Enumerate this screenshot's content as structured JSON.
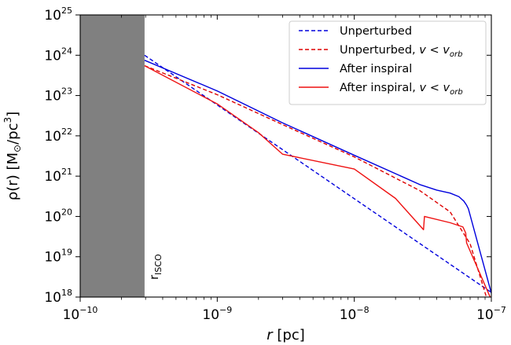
{
  "chart_data": {
    "type": "line",
    "xscale": "log",
    "yscale": "log",
    "xlim": [
      1e-10,
      1e-07
    ],
    "ylim": [
      1e+18,
      1e+25
    ],
    "xlabel": {
      "var": "r",
      "rest": " [pc]"
    },
    "ylabel": {
      "main": "ρ(r) [M",
      "sub": "⊙",
      "mid": "/pc",
      "sup": "3",
      "end": "]"
    },
    "xticks": [
      {
        "value": 1e-10,
        "base": "10",
        "exp": "−10"
      },
      {
        "value": 1e-09,
        "base": "10",
        "exp": "−9"
      },
      {
        "value": 1e-08,
        "base": "10",
        "exp": "−8"
      },
      {
        "value": 1e-07,
        "base": "10",
        "exp": "−7"
      }
    ],
    "yticks": [
      {
        "value": 1e+18,
        "base": "10",
        "exp": "18"
      },
      {
        "value": 1e+19,
        "base": "10",
        "exp": "19"
      },
      {
        "value": 1e+20,
        "base": "10",
        "exp": "20"
      },
      {
        "value": 1e+21,
        "base": "10",
        "exp": "21"
      },
      {
        "value": 1e+22,
        "base": "10",
        "exp": "22"
      },
      {
        "value": 1e+23,
        "base": "10",
        "exp": "23"
      },
      {
        "value": 1e+24,
        "base": "10",
        "exp": "24"
      },
      {
        "value": 1e+25,
        "base": "10",
        "exp": "25"
      }
    ],
    "shaded_region": {
      "x": [
        1e-10,
        2.95e-10
      ],
      "color": "#808080",
      "label": "r",
      "label_sub": "ISCO"
    },
    "legend": {
      "position": "upper right"
    },
    "series": [
      {
        "name": "Unperturbed",
        "color": "#0000dd",
        "dash": "dashed",
        "points": [
          [
            2.95e-10,
            1e+24
          ],
          [
            1e-07,
            1.3e+18
          ]
        ]
      },
      {
        "name": "Unperturbed, v < v_orb",
        "legend_main": "Unperturbed, ",
        "legend_var": "v",
        "legend_lt": " < ",
        "legend_v2": "v",
        "legend_sub": "orb",
        "color": "#dd0000",
        "dash": "dashed",
        "points": [
          [
            2.95e-10,
            5.5e+23
          ],
          [
            1e-09,
            1.05e+23
          ],
          [
            3e-09,
            1.9e+22
          ],
          [
            1e-08,
            3e+21
          ],
          [
            3e-08,
            4.4e+20
          ],
          [
            5e-08,
            1.3e+20
          ],
          [
            7e-08,
            2.1e+19
          ],
          [
            9.2e-08,
            1e+18
          ]
        ]
      },
      {
        "name": "After inspiral",
        "color": "#0000dd",
        "dash": "solid",
        "points": [
          [
            2.95e-10,
            7.5e+23
          ],
          [
            1e-09,
            1.3e+23
          ],
          [
            3e-09,
            2.1e+22
          ],
          [
            1e-08,
            3.3e+21
          ],
          [
            2e-08,
            1.15e+21
          ],
          [
            3e-08,
            6.2e+20
          ],
          [
            4e-08,
            4.5e+20
          ],
          [
            5e-08,
            3.8e+20
          ],
          [
            5.8e-08,
            3.1e+20
          ],
          [
            6.3e-08,
            2.4e+20
          ],
          [
            6.6e-08,
            1.9e+20
          ],
          [
            6.8e-08,
            1.55e+20
          ],
          [
            1e-07,
            1.25e+18
          ]
        ]
      },
      {
        "name": "After inspiral, v < v_orb",
        "legend_main": "After inspiral, ",
        "legend_var": "v",
        "legend_lt": " < ",
        "legend_v2": "v",
        "legend_sub": "orb",
        "color": "#ee1111",
        "dash": "solid",
        "points": [
          [
            2.95e-10,
            5.5e+23
          ],
          [
            1e-09,
            6.2e+22
          ],
          [
            2e-09,
            1.2e+22
          ],
          [
            3e-09,
            3.5e+21
          ],
          [
            1e-08,
            1.5e+21
          ],
          [
            2e-08,
            2.8e+20
          ],
          [
            3.2e-08,
            4.7e+19
          ],
          [
            3.25e-08,
            1e+20
          ],
          [
            5e-08,
            7e+19
          ],
          [
            6.2e-08,
            5.5e+19
          ],
          [
            6.5e-08,
            3.9e+19
          ],
          [
            6.6e-08,
            2.2e+19
          ],
          [
            9.8e-08,
            1e+18
          ]
        ]
      }
    ]
  }
}
